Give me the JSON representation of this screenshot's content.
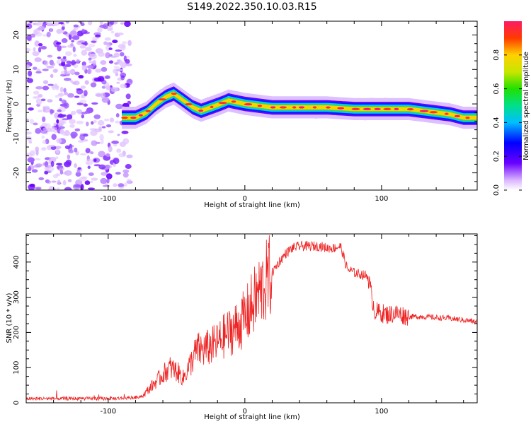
{
  "title": "S149.2022.350.10.03.R15",
  "colors": {
    "snr_line": "#ee2222",
    "axes": "#000000",
    "background": "#ffffff"
  },
  "chart_data": [
    {
      "type": "heatmap",
      "xlabel": "Height of straight line (km)",
      "ylabel": "Frequency (Hz)",
      "xlim": [
        -160,
        170
      ],
      "ylim": [
        -25,
        24
      ],
      "xticks": [
        -100,
        0,
        100
      ],
      "yticks": [
        -20,
        -10,
        0,
        10,
        20
      ],
      "colorbar": {
        "label": "Normalized spectral amplitude",
        "range": [
          0.0,
          1.0
        ],
        "ticks": [
          "0.0",
          "0.2",
          "0.4",
          "0.6",
          "0.8"
        ],
        "colormap": "rainbow-white-to-magenta"
      },
      "ridge_frequency": {
        "x": [
          -90,
          -80,
          -72,
          -65,
          -58,
          -52,
          -45,
          -38,
          -32,
          -25,
          -18,
          -12,
          -6,
          0,
          10,
          20,
          30,
          40,
          60,
          80,
          90,
          100,
          110,
          120,
          130,
          140,
          150,
          160,
          170
        ],
        "y": [
          -4,
          -4,
          -2.5,
          0,
          2,
          3,
          1,
          -1,
          -2,
          -1,
          0,
          1,
          0.5,
          0,
          -0.5,
          -1,
          -1,
          -1,
          -1,
          -1.5,
          -1.5,
          -1.5,
          -1.5,
          -1.5,
          -2,
          -2.5,
          -3,
          -4,
          -4
        ]
      },
      "noise_region_x": [
        -160,
        -80
      ]
    },
    {
      "type": "line",
      "xlabel": "Height of straight line (km)",
      "ylabel": "SNR (10 * v/v)",
      "xlim": [
        -160,
        170
      ],
      "ylim": [
        0,
        480
      ],
      "xticks": [
        -100,
        0,
        100
      ],
      "yticks": [
        0,
        100,
        200,
        300,
        400
      ],
      "series": [
        {
          "x": [
            -160,
            -140,
            -120,
            -100,
            -90,
            -80,
            -75,
            -70,
            -65,
            -60,
            -55,
            -50,
            -45,
            -40,
            -35,
            -30,
            -25,
            -20,
            -15,
            -10,
            -5,
            0,
            5,
            10,
            15,
            20,
            25,
            30,
            35,
            40,
            45,
            50,
            55,
            60,
            65,
            70,
            75,
            80,
            85,
            90,
            95,
            100,
            105,
            110,
            115,
            120,
            130,
            140,
            150,
            160,
            170
          ],
          "values": [
            12,
            12,
            12,
            12,
            13,
            15,
            20,
            40,
            60,
            80,
            100,
            90,
            70,
            110,
            150,
            150,
            160,
            170,
            190,
            205,
            220,
            240,
            275,
            310,
            340,
            370,
            400,
            425,
            440,
            445,
            445,
            445,
            445,
            440,
            440,
            445,
            380,
            370,
            365,
            360,
            260,
            255,
            250,
            255,
            250,
            245,
            245,
            242,
            240,
            235,
            230
          ]
        }
      ]
    }
  ]
}
